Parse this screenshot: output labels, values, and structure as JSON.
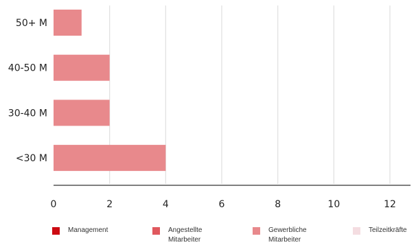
{
  "chart_data": {
    "type": "bar",
    "orientation": "horizontal",
    "stacked": true,
    "categories": [
      "50+ M",
      "40-50 M",
      "30-40 M",
      "<30 M"
    ],
    "series": [
      {
        "name": "Management",
        "color": "#cc0a12",
        "values": [
          0,
          0,
          0,
          0
        ]
      },
      {
        "name": "Angestellte Mitarbeiter",
        "color": "#e0585e",
        "values": [
          0,
          0,
          0,
          0
        ]
      },
      {
        "name": "Gewerbliche Mitarbeiter",
        "color": "#e8898c",
        "values": [
          1,
          2,
          2,
          4
        ]
      },
      {
        "name": "Teilzeitkräfte",
        "color": "#f4dde1",
        "values": [
          0,
          0,
          0,
          0
        ]
      }
    ],
    "xlim": [
      0,
      12
    ],
    "xticks": [
      "0",
      "2",
      "4",
      "6",
      "8",
      "10",
      "12"
    ],
    "grid": true,
    "legend_position": "bottom",
    "title": "",
    "xlabel": "",
    "ylabel": ""
  },
  "legend": {
    "items": [
      {
        "lines": [
          "Management"
        ],
        "color": "#cc0a12"
      },
      {
        "lines": [
          "Angestellte",
          "Mitarbeiter"
        ],
        "color": "#e0585e"
      },
      {
        "lines": [
          "Gewerbliche",
          "Mitarbeiter"
        ],
        "color": "#e8898c"
      },
      {
        "lines": [
          "Teilzeitkräfte"
        ],
        "color": "#f4dde1"
      }
    ]
  }
}
